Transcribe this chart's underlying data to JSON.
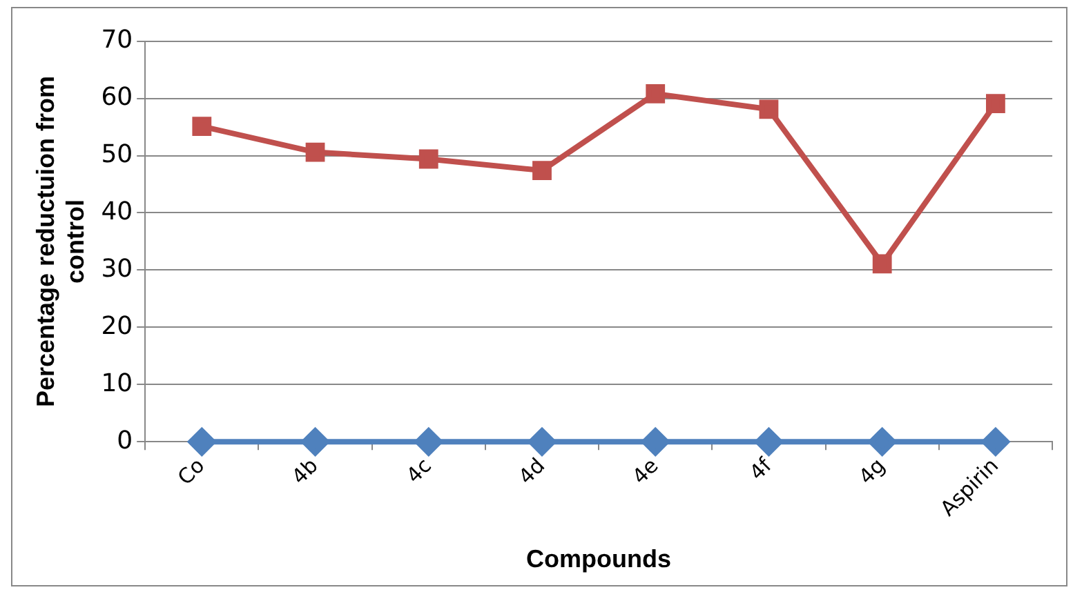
{
  "chart_data": {
    "type": "line",
    "xlabel": "Compounds",
    "ylabel": "Percentage reductuion from control",
    "categories": [
      "Co",
      "4b",
      "4c",
      "4d",
      "4e",
      "4f",
      "4g",
      "Aspirin"
    ],
    "series": [
      {
        "color": "#4f81bd",
        "marker": "diamond",
        "values": [
          0,
          0,
          0,
          0,
          0,
          0,
          0,
          0
        ]
      },
      {
        "color": "#c0504d",
        "marker": "square",
        "values": [
          55.1,
          50.6,
          49.4,
          47.4,
          60.8,
          58.1,
          31.1,
          59.1
        ]
      }
    ],
    "ylim": [
      0,
      70
    ],
    "yticks": [
      0,
      10,
      20,
      30,
      40,
      50,
      60,
      70
    ],
    "grid": "y",
    "legend": false
  }
}
